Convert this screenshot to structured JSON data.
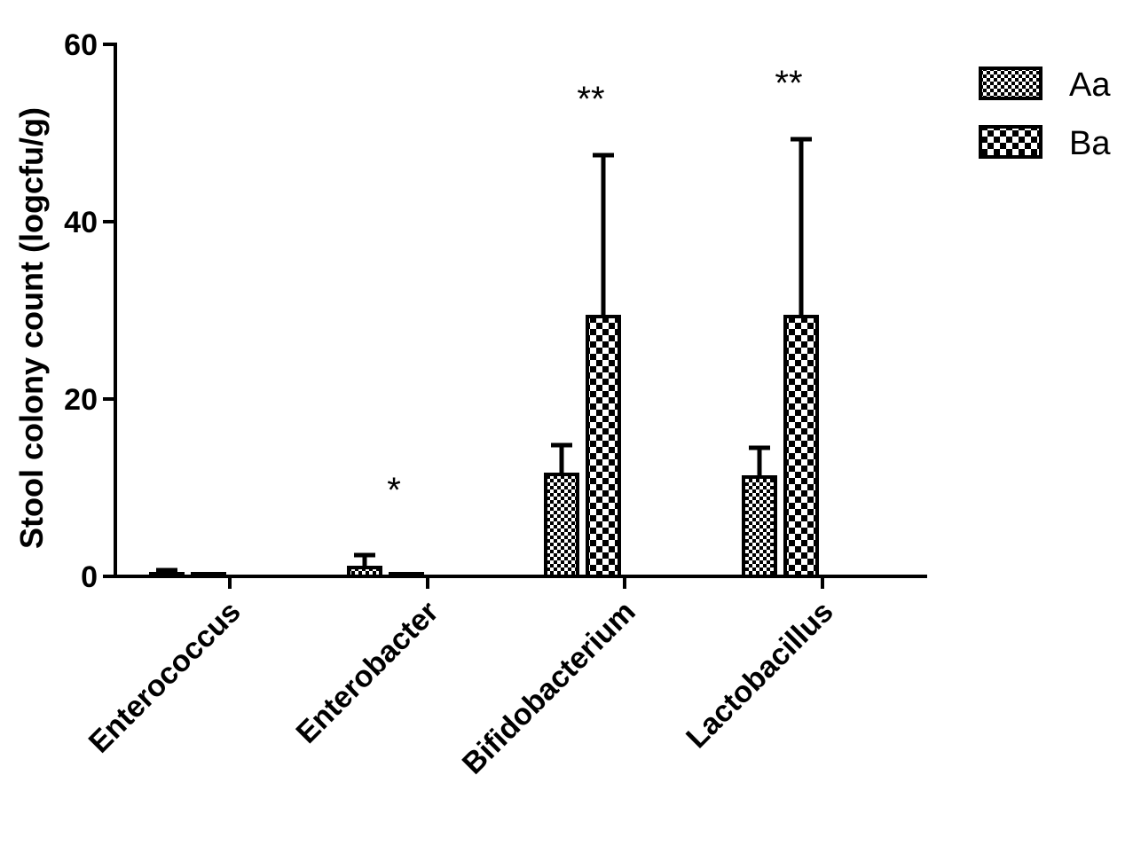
{
  "chart_data": {
    "type": "bar",
    "title": "",
    "xlabel": "",
    "ylabel": "Stool colony count (logcfu/g)",
    "ylim": [
      0,
      60
    ],
    "yticks": [
      0,
      20,
      40,
      60
    ],
    "categories": [
      "Enterococcus",
      "Enterobacter",
      "Bifidobacterium",
      "Lactobacillus"
    ],
    "series": [
      {
        "name": "Aa",
        "values": [
          0.3,
          1.0,
          11.5,
          11.2
        ],
        "errors": [
          0.4,
          1.4,
          3.3,
          3.3
        ],
        "pattern": "fine-check"
      },
      {
        "name": "Ba",
        "values": [
          0.1,
          0.05,
          29.3,
          29.3
        ],
        "errors": [
          0.1,
          0.05,
          18.2,
          20.0
        ],
        "pattern": "coarse-check"
      }
    ],
    "significance": [
      "",
      "*",
      "**",
      "**"
    ],
    "legend": {
      "position": "top-right"
    },
    "grid": false
  }
}
